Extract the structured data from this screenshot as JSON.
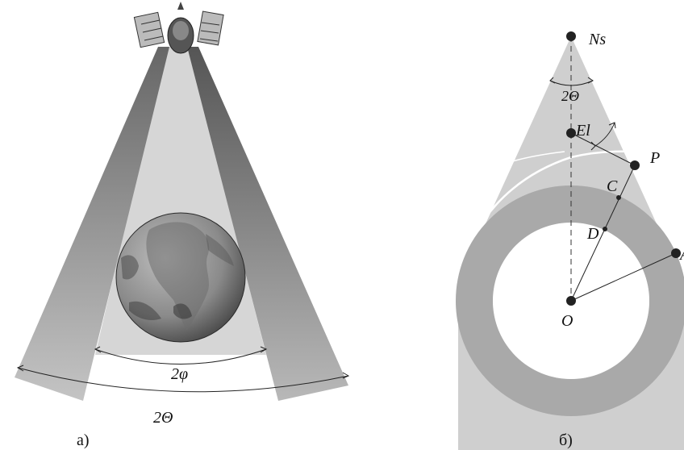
{
  "panel_a": {
    "caption": "а)",
    "inner_angle_label": "2φ",
    "outer_angle_label": "2Θ",
    "icons": [
      "satellite-icon",
      "earth-globe-icon"
    ]
  },
  "panel_b": {
    "caption": "б)",
    "apex_angle_label": "2Θ",
    "points": {
      "ns": "Ns",
      "el": "El",
      "p": "P",
      "c": "C",
      "d": "D",
      "o": "O",
      "a": "A"
    }
  }
}
